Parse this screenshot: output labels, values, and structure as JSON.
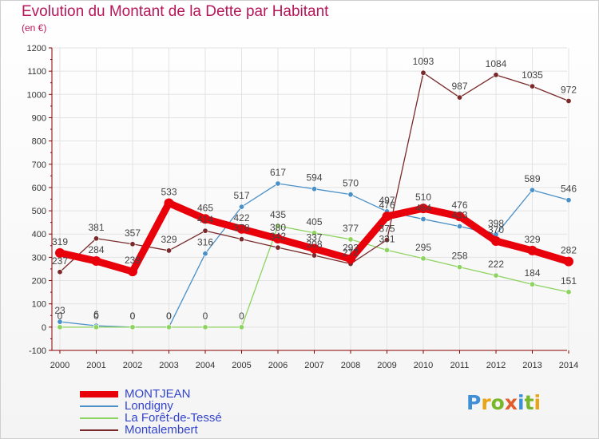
{
  "title": "Evolution du Montant de la Dette par Habitant",
  "subtitle": "(en €)",
  "logo": {
    "letters": [
      "P",
      "r",
      "o",
      "x",
      "i",
      "t",
      "i"
    ],
    "colors": [
      "#3f8fd6",
      "#e8a317",
      "#79b72a",
      "#e05c2a",
      "#3f8fd6",
      "#79b72a",
      "#e8a317"
    ]
  },
  "chart_data": {
    "type": "line",
    "x": [
      "2000",
      "2001",
      "2002",
      "2003",
      "2004",
      "2005",
      "2006",
      "2007",
      "2008",
      "2009",
      "2010",
      "2011",
      "2012",
      "2013",
      "2014"
    ],
    "ylim": [
      -100,
      1200
    ],
    "yticks": [
      "-100",
      "0",
      "100",
      "200",
      "300",
      "400",
      "500",
      "600",
      "700",
      "800",
      "900",
      "1000",
      "1100",
      "1200"
    ],
    "grid": true,
    "legend_position": "bottom-left",
    "series": [
      {
        "name": "MONTJEAN",
        "color": "#e8000b",
        "values": [
          319,
          284,
          239,
          533,
          465,
          422,
          380,
          337,
          293,
          476,
          510,
          476,
          370,
          329,
          282
        ],
        "labels": [
          "319",
          "284",
          "239",
          "533",
          "465",
          "422",
          "380",
          "337",
          "293",
          "476",
          "510",
          "476",
          "370",
          "329",
          "282"
        ]
      },
      {
        "name": "Londigny",
        "color": "#4a90c8",
        "values": [
          23,
          6,
          0,
          0,
          316,
          517,
          617,
          594,
          570,
          497,
          464,
          433,
          398,
          589,
          546
        ],
        "labels": [
          "23",
          "6",
          "0",
          "0",
          "316",
          "517",
          "617",
          "594",
          "570",
          "497",
          "464",
          "433",
          "398",
          "589",
          "546"
        ]
      },
      {
        "name": "La Forêt-de-Tessé",
        "color": "#8dd35f",
        "values": [
          0,
          0,
          0,
          0,
          0,
          0,
          435,
          405,
          377,
          331,
          295,
          258,
          222,
          184,
          151
        ],
        "labels": [
          "0",
          "0",
          "0",
          "0",
          "0",
          "0",
          "435",
          "405",
          "377",
          "331",
          "295",
          "258",
          "222",
          "184",
          "151"
        ]
      },
      {
        "name": "Montalembert",
        "color": "#7a2a2a",
        "values": [
          237,
          381,
          357,
          329,
          414,
          378,
          342,
          308,
          272,
          375,
          1093,
          987,
          1084,
          1035,
          972
        ],
        "labels": [
          "237",
          "381",
          "357",
          "329",
          "414",
          "378",
          "342",
          "308",
          "272",
          "375",
          "1093",
          "987",
          "1084",
          "1035",
          "972"
        ]
      }
    ]
  }
}
